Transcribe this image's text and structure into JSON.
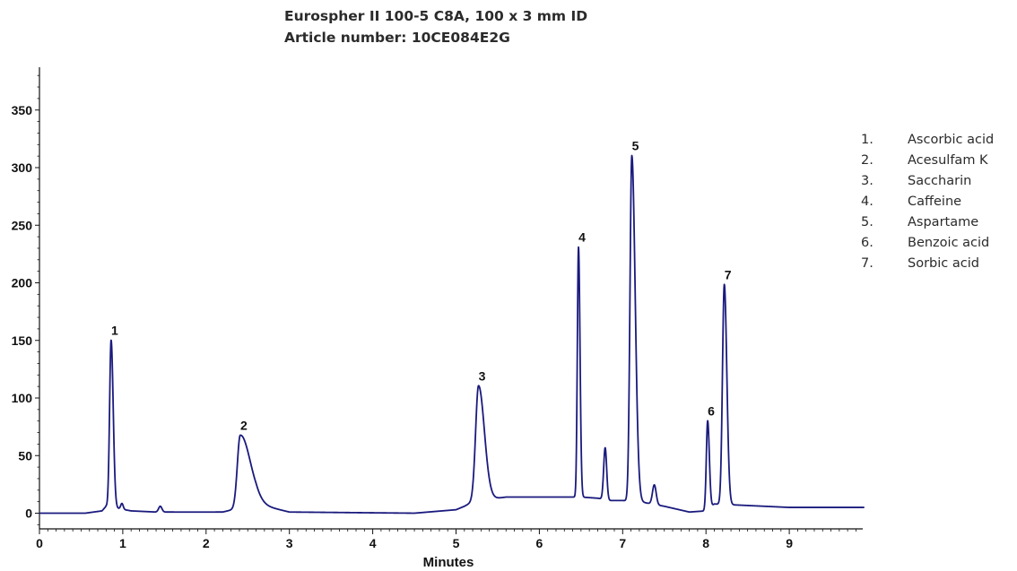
{
  "header": {
    "title_line1": "Eurospher II 100-5 C8A, 100 x 3 mm ID",
    "title_line2": "Article number: 10CE084E2G"
  },
  "legend": [
    {
      "number": "1.",
      "label": "Ascorbic acid"
    },
    {
      "number": "2.",
      "label": "Acesulfam K"
    },
    {
      "number": "3.",
      "label": "Saccharin"
    },
    {
      "number": "4.",
      "label": "Caffeine"
    },
    {
      "number": "5.",
      "label": "Aspartame"
    },
    {
      "number": "6.",
      "label": "Benzoic acid"
    },
    {
      "number": "7.",
      "label": "Sorbic acid"
    }
  ],
  "colors": {
    "trace": "#1a1a7e",
    "axis": "#111111"
  },
  "chart_data": {
    "type": "line",
    "title": "Eurospher II 100-5 C8A, 100 x 3 mm ID",
    "subtitle": "Article number: 10CE084E2G",
    "xlabel": "Minutes",
    "ylabel": "",
    "xlim": [
      0,
      9.9
    ],
    "ylim": [
      -10,
      385
    ],
    "x_ticks": [
      "0",
      "1",
      "2",
      "3",
      "4",
      "5",
      "6",
      "7",
      "8",
      "9"
    ],
    "y_ticks": [
      "0",
      "50",
      "100",
      "150",
      "200",
      "250",
      "300",
      "350"
    ],
    "x_tick_values": [
      0,
      1,
      2,
      3,
      4,
      5,
      6,
      7,
      8,
      9
    ],
    "y_tick_values": [
      0,
      50,
      100,
      150,
      200,
      250,
      300,
      350
    ],
    "grid": false,
    "legend_position": "right",
    "baseline": [
      [
        0,
        0
      ],
      [
        0.55,
        0
      ],
      [
        0.75,
        2
      ],
      [
        0.8,
        6
      ],
      [
        0.95,
        4
      ],
      [
        1.1,
        2
      ],
      [
        1.4,
        1
      ],
      [
        2.2,
        1
      ],
      [
        2.6,
        8
      ],
      [
        3.0,
        1
      ],
      [
        4.5,
        0
      ],
      [
        5.0,
        3
      ],
      [
        5.1,
        6
      ],
      [
        5.2,
        10
      ],
      [
        5.6,
        14
      ],
      [
        6.0,
        14
      ],
      [
        6.2,
        14
      ],
      [
        6.4,
        14
      ],
      [
        6.5,
        14
      ],
      [
        6.7,
        13
      ],
      [
        6.85,
        11
      ],
      [
        7.0,
        11
      ],
      [
        7.2,
        10
      ],
      [
        7.5,
        6
      ],
      [
        7.8,
        1
      ],
      [
        8.0,
        2
      ],
      [
        8.1,
        8
      ],
      [
        8.4,
        7
      ],
      [
        8.7,
        6
      ],
      [
        9.0,
        5
      ],
      [
        9.3,
        5
      ],
      [
        9.9,
        5
      ]
    ],
    "minor_peaks": [
      {
        "rt": 0.99,
        "height": 5,
        "sigma": 0.015
      },
      {
        "rt": 1.45,
        "height": 5,
        "sigma": 0.02
      },
      {
        "rt": 6.79,
        "height": 45,
        "sigma": 0.018
      },
      {
        "rt": 7.38,
        "height": 17,
        "sigma": 0.022
      }
    ],
    "peaks": [
      {
        "label": "1",
        "name": "Ascorbic acid",
        "rt": 0.86,
        "height": 145,
        "sigma_left": 0.018,
        "sigma_right": 0.025
      },
      {
        "label": "2",
        "name": "Acesulfam K",
        "rt": 2.41,
        "height": 63,
        "sigma_left": 0.035,
        "sigma_right": 0.12
      },
      {
        "label": "3",
        "name": "Saccharin",
        "rt": 5.27,
        "height": 100,
        "sigma_left": 0.035,
        "sigma_right": 0.07
      },
      {
        "label": "4",
        "name": "Caffeine",
        "rt": 6.47,
        "height": 217,
        "sigma_left": 0.014,
        "sigma_right": 0.018
      },
      {
        "label": "5",
        "name": "Aspartame",
        "rt": 7.11,
        "height": 300,
        "sigma_left": 0.022,
        "sigma_right": 0.04
      },
      {
        "label": "6",
        "name": "Benzoic acid",
        "rt": 8.02,
        "height": 77,
        "sigma_left": 0.016,
        "sigma_right": 0.02
      },
      {
        "label": "7",
        "name": "Sorbic acid",
        "rt": 8.22,
        "height": 191,
        "sigma_left": 0.022,
        "sigma_right": 0.03
      }
    ]
  }
}
